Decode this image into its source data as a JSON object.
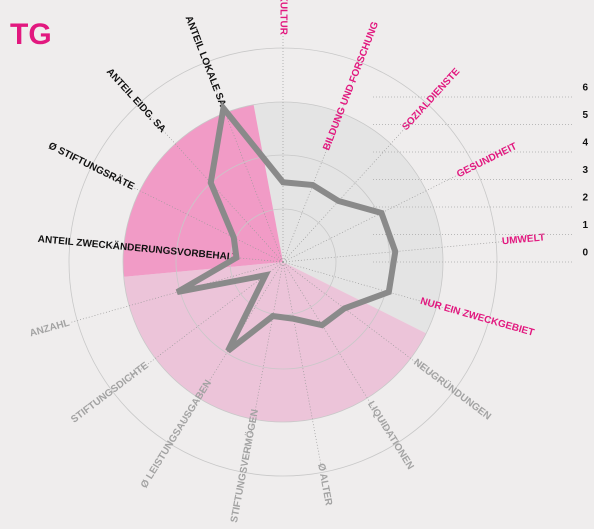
{
  "chart_data": {
    "type": "radar",
    "title": "TG",
    "categories": [
      "KULTUR",
      "BILDUNG UND FORSCHUNG",
      "SOZIALDIENSTE",
      "GESUNDHEIT",
      "UMWELT",
      "NUR EIN ZWECKGEBIET",
      "NEUGRÜNDUNGEN",
      "LIQUIDATIONEN",
      "Ø ALTER",
      "STIFTUNGSVERMÖGEN",
      "Ø LEISTUNGSAUSGABEN",
      "STIFTUNGSDICHTE",
      "ANZAHL",
      "ANTEIL ZWECKÄNDERUNGSVORBEHALT",
      "Ø STIFTUNGSRÄTE",
      "ANTEIL EIDG. SA",
      "ANTEIL LOKALE SA"
    ],
    "values": [
      2.9,
      3.0,
      3.0,
      4.0,
      4.1,
      4.0,
      2.8,
      2.7,
      2.1,
      2.0,
      3.8,
      0.8,
      4.0,
      1.7,
      2.0,
      3.9,
      6.0
    ],
    "color": "#8a8a8a",
    "groups": [
      {
        "color": "#e4e4e4",
        "label_color": "#e2187f",
        "count": 6
      },
      {
        "color": "#ecc4d9",
        "label_color": "#a3a3a3",
        "count": 7
      },
      {
        "color": "#f19bc6",
        "label_color": "#111111",
        "count": 4
      }
    ],
    "ylim": [
      0,
      6
    ],
    "yticks": [
      0,
      1,
      2,
      3,
      4,
      5,
      6
    ]
  }
}
